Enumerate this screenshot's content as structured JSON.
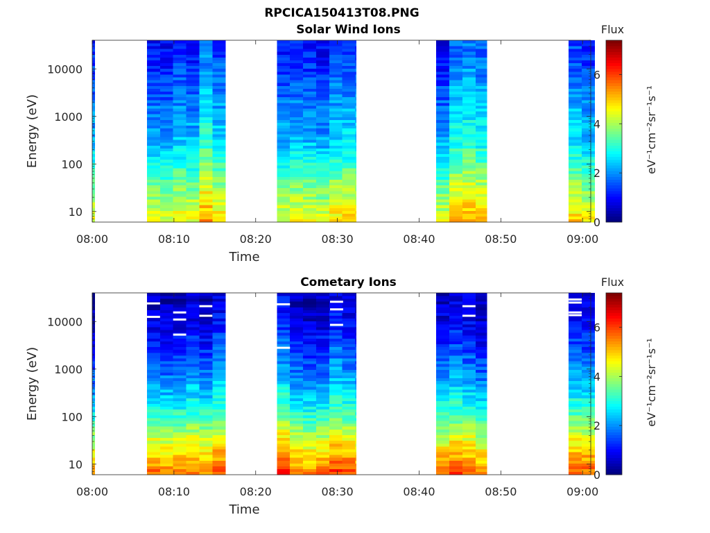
{
  "figure": {
    "title": "RPCICA150413T08.PNG"
  },
  "colorbar": {
    "label": "Flux",
    "unit": "eV⁻¹cm⁻²sr⁻¹s⁻¹",
    "colormap": "jet",
    "range": [
      0,
      7.4
    ],
    "ticks": [
      0,
      2,
      4,
      6
    ]
  },
  "chart_data": [
    {
      "type": "heatmap",
      "title": "Solar Wind Ions",
      "xlabel": "Time",
      "ylabel": "Energy (eV)",
      "yscale": "log",
      "ylim": [
        6,
        40000
      ],
      "xlim": [
        "08:00",
        "09:01"
      ],
      "xticks": [
        "08:00",
        "08:10",
        "08:20",
        "08:30",
        "08:40",
        "08:50",
        "09:00"
      ],
      "yticks": [
        10,
        100,
        1000,
        10000
      ],
      "coverage_minutes": [
        [
          0,
          0.3
        ],
        [
          6.7,
          16.3
        ],
        [
          22.6,
          32.3
        ],
        [
          42.1,
          48.3
        ],
        [
          58.3,
          61.5
        ]
      ],
      "profile": [
        {
          "energy": 40000,
          "flux": 1.3
        },
        {
          "energy": 10000,
          "flux": 1.6
        },
        {
          "energy": 1000,
          "flux": 2.3
        },
        {
          "energy": 300,
          "flux": 2.6
        },
        {
          "energy": 100,
          "flux": 3.2
        },
        {
          "energy": 30,
          "flux": 4.0
        },
        {
          "energy": 6,
          "flux": 4.9
        }
      ],
      "voids": []
    },
    {
      "type": "heatmap",
      "title": "Cometary Ions",
      "xlabel": "Time",
      "ylabel": "Energy (eV)",
      "yscale": "log",
      "ylim": [
        6,
        40000
      ],
      "xlim": [
        "08:00",
        "09:01"
      ],
      "xticks": [
        "08:00",
        "08:10",
        "08:20",
        "08:30",
        "08:40",
        "08:50",
        "09:00"
      ],
      "yticks": [
        10,
        100,
        1000,
        10000
      ],
      "coverage_minutes": [
        [
          0,
          0.3
        ],
        [
          6.7,
          16.3
        ],
        [
          22.6,
          32.3
        ],
        [
          42.1,
          48.3
        ],
        [
          58.3,
          61.5
        ]
      ],
      "profile": [
        {
          "energy": 40000,
          "flux": 0.5
        },
        {
          "energy": 10000,
          "flux": 0.8
        },
        {
          "energy": 3000,
          "flux": 1.3
        },
        {
          "energy": 1000,
          "flux": 1.8
        },
        {
          "energy": 300,
          "flux": 2.5
        },
        {
          "energy": 100,
          "flux": 3.3
        },
        {
          "energy": 30,
          "flux": 4.5
        },
        {
          "energy": 6,
          "flux": 5.8
        }
      ],
      "voids": [
        {
          "t0": 6.7,
          "t1": 8.3,
          "energy": 24000
        },
        {
          "t0": 6.7,
          "t1": 8.3,
          "energy": 12500
        },
        {
          "t0": 9.9,
          "t1": 11.5,
          "energy": 15500
        },
        {
          "t0": 9.9,
          "t1": 11.5,
          "energy": 11000
        },
        {
          "t0": 9.9,
          "t1": 11.5,
          "energy": 5300
        },
        {
          "t0": 13.1,
          "t1": 14.7,
          "energy": 21000
        },
        {
          "t0": 13.1,
          "t1": 14.7,
          "energy": 13200
        },
        {
          "t0": 22.6,
          "t1": 24.2,
          "energy": 23000
        },
        {
          "t0": 22.6,
          "t1": 24.2,
          "energy": 2800
        },
        {
          "t0": 29.1,
          "t1": 30.7,
          "energy": 26000
        },
        {
          "t0": 29.1,
          "t1": 30.7,
          "energy": 18000
        },
        {
          "t0": 29.1,
          "t1": 30.7,
          "energy": 8500
        },
        {
          "t0": 45.3,
          "t1": 46.9,
          "energy": 21000
        },
        {
          "t0": 45.3,
          "t1": 46.9,
          "energy": 13200
        },
        {
          "t0": 58.3,
          "t1": 59.9,
          "energy": 29000
        },
        {
          "t0": 58.3,
          "t1": 59.9,
          "energy": 25000
        },
        {
          "t0": 58.3,
          "t1": 59.9,
          "energy": 15500
        },
        {
          "t0": 58.3,
          "t1": 59.9,
          "energy": 13600
        }
      ]
    }
  ]
}
